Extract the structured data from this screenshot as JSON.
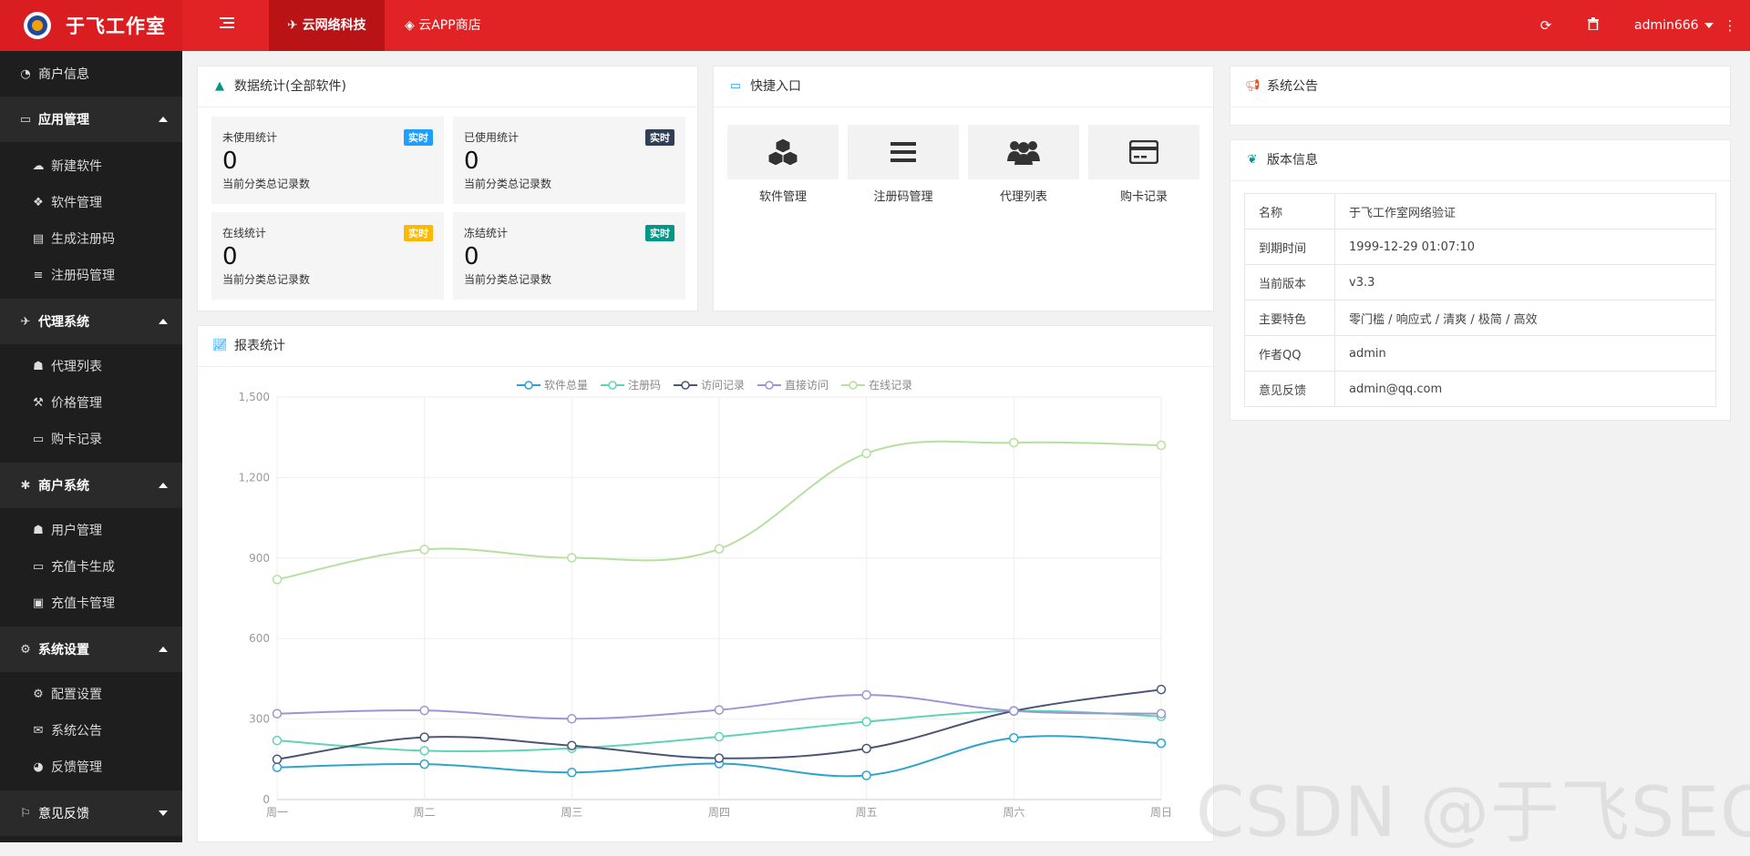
{
  "header": {
    "brand": "于飞工作室",
    "tabs": [
      {
        "label": "云网络科技"
      },
      {
        "label": "云APP商店"
      }
    ],
    "user": "admin666"
  },
  "sidebar": {
    "items": [
      {
        "label": "商户信息",
        "icon": "dashboard-icon"
      },
      {
        "label": "应用管理",
        "icon": "window-icon"
      },
      {
        "label": "新建软件",
        "icon": "cloud-icon"
      },
      {
        "label": "软件管理",
        "icon": "cubes-icon"
      },
      {
        "label": "生成注册码",
        "icon": "list-alt-icon"
      },
      {
        "label": "注册码管理",
        "icon": "bars-icon"
      },
      {
        "label": "代理系统",
        "icon": "paper-plane-icon"
      },
      {
        "label": "代理列表",
        "icon": "users-icon"
      },
      {
        "label": "价格管理",
        "icon": "gavel-icon"
      },
      {
        "label": "购卡记录",
        "icon": "credit-card-icon"
      },
      {
        "label": "商户系统",
        "icon": "bug-icon"
      },
      {
        "label": "用户管理",
        "icon": "users-icon"
      },
      {
        "label": "充值卡生成",
        "icon": "credit-card-icon"
      },
      {
        "label": "充值卡管理",
        "icon": "id-card-icon"
      },
      {
        "label": "系统设置",
        "icon": "cogs-icon"
      },
      {
        "label": "配置设置",
        "icon": "cog-icon"
      },
      {
        "label": "系统公告",
        "icon": "comments-icon"
      },
      {
        "label": "反馈管理",
        "icon": "pie-chart-icon"
      },
      {
        "label": "意见反馈",
        "icon": "flag-icon"
      }
    ]
  },
  "stats": {
    "title": "数据统计(全部软件)",
    "cards": [
      {
        "title": "未使用统计",
        "badge": "实时",
        "badge_color": "#1e9fff",
        "value": "0",
        "desc": "当前分类总记录数"
      },
      {
        "title": "已使用统计",
        "badge": "实时",
        "badge_color": "#2f4056",
        "value": "0",
        "desc": "当前分类总记录数"
      },
      {
        "title": "在线统计",
        "badge": "实时",
        "badge_color": "#ffb800",
        "value": "0",
        "desc": "当前分类总记录数"
      },
      {
        "title": "冻结统计",
        "badge": "实时",
        "badge_color": "#009688",
        "value": "0",
        "desc": "当前分类总记录数"
      }
    ]
  },
  "quick": {
    "title": "快捷入口",
    "items": [
      {
        "label": "软件管理",
        "icon": "cubes-icon"
      },
      {
        "label": "注册码管理",
        "icon": "bars-icon"
      },
      {
        "label": "代理列表",
        "icon": "users-icon"
      },
      {
        "label": "购卡记录",
        "icon": "credit-card-icon"
      }
    ]
  },
  "notice": {
    "title": "系统公告"
  },
  "version": {
    "title": "版本信息",
    "rows": [
      {
        "k": "名称",
        "v": "于飞工作室网络验证"
      },
      {
        "k": "到期时间",
        "v": "1999-12-29 01:07:10"
      },
      {
        "k": "当前版本",
        "v": "v3.3"
      },
      {
        "k": "主要特色",
        "v": "零门槛 / 响应式 / 清爽 / 极简 / 高效"
      },
      {
        "k": "作者QQ",
        "v": "admin"
      },
      {
        "k": "意见反馈",
        "v": "admin@qq.com"
      }
    ]
  },
  "report": {
    "title": "报表统计"
  },
  "chart_data": {
    "type": "line",
    "title": "",
    "categories": [
      "周一",
      "周二",
      "周三",
      "周四",
      "周五",
      "周六",
      "周日"
    ],
    "ylim": [
      0,
      1500
    ],
    "yticks": [
      "0",
      "300",
      "600",
      "900",
      "1,200",
      "1,500"
    ],
    "ytick_values": [
      0,
      300,
      600,
      900,
      1200,
      1500
    ],
    "grid": true,
    "legend_position": "top-center",
    "smooth": true,
    "series": [
      {
        "name": "软件总量",
        "color": "#2ea3cf",
        "values": [
          120,
          132,
          101,
          134,
          90,
          230,
          210
        ]
      },
      {
        "name": "注册码",
        "color": "#5fd3b3",
        "values": [
          220,
          182,
          191,
          234,
          290,
          330,
          310
        ]
      },
      {
        "name": "访问记录",
        "color": "#4b5577",
        "values": [
          150,
          232,
          201,
          154,
          190,
          330,
          410
        ]
      },
      {
        "name": "直接访问",
        "color": "#9b95d3",
        "values": [
          320,
          332,
          301,
          334,
          390,
          330,
          320
        ]
      },
      {
        "name": "在线记录",
        "color": "#b5e0a0",
        "values": [
          820,
          932,
          901,
          934,
          1290,
          1330,
          1320
        ]
      }
    ]
  },
  "watermark": "CSDN @于飞SEO"
}
